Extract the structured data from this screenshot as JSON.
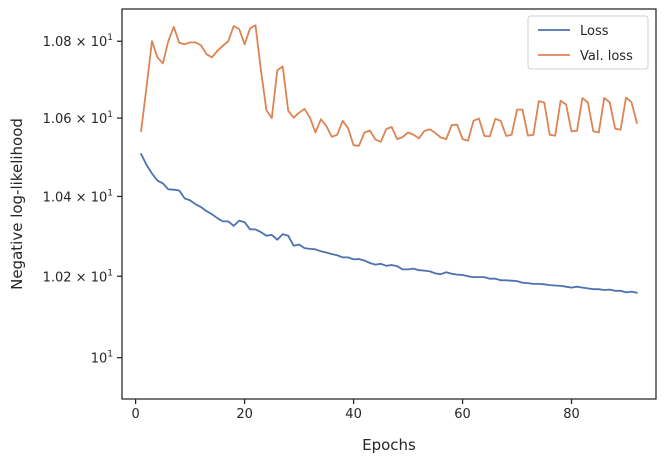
{
  "chart_data": {
    "type": "line",
    "xlabel": "Epochs",
    "ylabel": "Negative log-likelihood",
    "x_ticks": [
      0,
      20,
      40,
      60,
      80
    ],
    "xlim": [
      -2.5,
      95.5
    ],
    "yscale": "log",
    "y_ticks": [
      {
        "value": 10.0,
        "base": "10",
        "exp": "1",
        "mult": ""
      },
      {
        "value": 10.2,
        "base": "10",
        "exp": "1",
        "mult": "1.02 × "
      },
      {
        "value": 10.4,
        "base": "10",
        "exp": "1",
        "mult": "1.04 × "
      },
      {
        "value": 10.6,
        "base": "10",
        "exp": "1",
        "mult": "1.06 × "
      },
      {
        "value": 10.8,
        "base": "10",
        "exp": "1",
        "mult": "1.08 × "
      }
    ],
    "ylim": [
      9.9,
      10.885
    ],
    "grid": false,
    "legend_position": "top-right",
    "series": [
      {
        "name": "Loss",
        "color": "#4c72b0",
        "x": [
          1,
          2,
          3,
          4,
          5,
          6,
          7,
          8,
          9,
          10,
          11,
          12,
          13,
          14,
          15,
          16,
          17,
          18,
          19,
          20,
          21,
          22,
          23,
          24,
          25,
          26,
          27,
          28,
          29,
          30,
          31,
          32,
          33,
          34,
          35,
          36,
          37,
          38,
          39,
          40,
          41,
          42,
          43,
          44,
          45,
          46,
          47,
          48,
          49,
          50,
          51,
          52,
          53,
          54,
          55,
          56,
          57,
          58,
          59,
          60,
          61,
          62,
          63,
          64,
          65,
          66,
          67,
          68,
          69,
          70,
          71,
          72,
          73,
          74,
          75,
          76,
          77,
          78,
          79,
          80,
          81,
          82,
          83,
          84,
          85,
          86,
          87,
          88,
          89,
          90,
          91,
          92
        ],
        "values": [
          10.508,
          10.48,
          10.458,
          10.44,
          10.433,
          10.418,
          10.417,
          10.415,
          10.395,
          10.39,
          10.38,
          10.373,
          10.363,
          10.355,
          10.345,
          10.337,
          10.337,
          10.326,
          10.339,
          10.335,
          10.317,
          10.317,
          10.31,
          10.301,
          10.303,
          10.291,
          10.305,
          10.301,
          10.276,
          10.279,
          10.27,
          10.268,
          10.267,
          10.262,
          10.259,
          10.255,
          10.252,
          10.247,
          10.247,
          10.242,
          10.243,
          10.239,
          10.233,
          10.229,
          10.231,
          10.226,
          10.228,
          10.225,
          10.217,
          10.217,
          10.219,
          10.215,
          10.214,
          10.212,
          10.207,
          10.205,
          10.21,
          10.206,
          10.204,
          10.203,
          10.2,
          10.198,
          10.198,
          10.198,
          10.194,
          10.194,
          10.19,
          10.19,
          10.189,
          10.188,
          10.184,
          10.183,
          10.181,
          10.181,
          10.18,
          10.178,
          10.177,
          10.176,
          10.174,
          10.172,
          10.174,
          10.172,
          10.17,
          10.168,
          10.168,
          10.166,
          10.167,
          10.164,
          10.164,
          10.16,
          10.162,
          10.159
        ]
      },
      {
        "name": "Val. loss",
        "color": "#dd8452",
        "x": [
          1,
          2,
          3,
          4,
          5,
          6,
          7,
          8,
          9,
          10,
          11,
          12,
          13,
          14,
          15,
          16,
          17,
          18,
          19,
          20,
          21,
          22,
          23,
          24,
          25,
          26,
          27,
          28,
          29,
          30,
          31,
          32,
          33,
          34,
          35,
          36,
          37,
          38,
          39,
          40,
          41,
          42,
          43,
          44,
          45,
          46,
          47,
          48,
          49,
          50,
          51,
          52,
          53,
          54,
          55,
          56,
          57,
          58,
          59,
          60,
          61,
          62,
          63,
          64,
          65,
          66,
          67,
          68,
          69,
          70,
          71,
          72,
          73,
          74,
          75,
          76,
          77,
          78,
          79,
          80,
          81,
          82,
          83,
          84,
          85,
          86,
          87,
          88,
          89,
          90,
          91,
          92
        ],
        "values": [
          10.566,
          10.68,
          10.8,
          10.758,
          10.742,
          10.8,
          10.838,
          10.796,
          10.792,
          10.797,
          10.797,
          10.789,
          10.766,
          10.758,
          10.775,
          10.788,
          10.8,
          10.84,
          10.832,
          10.792,
          10.834,
          10.842,
          10.725,
          10.62,
          10.6,
          10.724,
          10.734,
          10.619,
          10.601,
          10.614,
          10.624,
          10.601,
          10.563,
          10.597,
          10.58,
          10.552,
          10.557,
          10.593,
          10.574,
          10.53,
          10.529,
          10.563,
          10.568,
          10.545,
          10.539,
          10.572,
          10.577,
          10.546,
          10.551,
          10.563,
          10.557,
          10.548,
          10.567,
          10.571,
          10.562,
          10.55,
          10.546,
          10.582,
          10.583,
          10.546,
          10.542,
          10.593,
          10.599,
          10.554,
          10.553,
          10.598,
          10.593,
          10.554,
          10.557,
          10.622,
          10.622,
          10.555,
          10.557,
          10.644,
          10.64,
          10.557,
          10.555,
          10.645,
          10.635,
          10.566,
          10.567,
          10.652,
          10.64,
          10.566,
          10.563,
          10.652,
          10.641,
          10.573,
          10.57,
          10.653,
          10.641,
          10.587
        ]
      }
    ]
  }
}
